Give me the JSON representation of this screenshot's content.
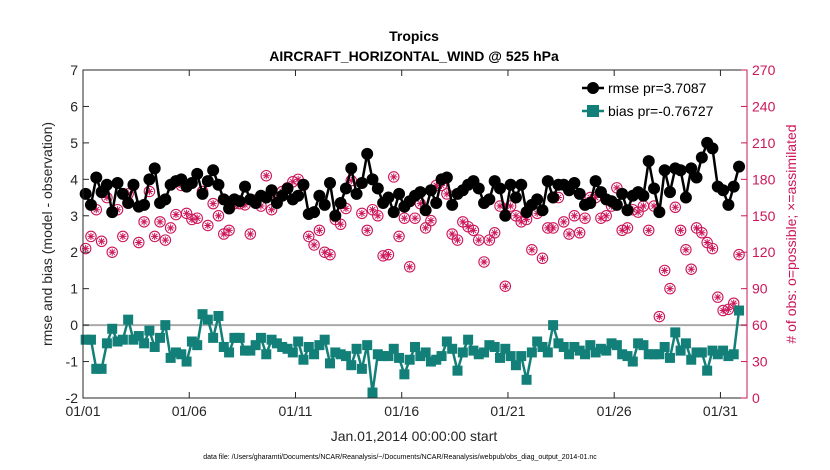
{
  "colors": {
    "rmse": "#000000",
    "bias": "#128078",
    "obs": "#cc1659",
    "zeroline": "#aaaaaa",
    "axis": "#333333"
  },
  "chart_data": {
    "type": "line",
    "title": "Tropics",
    "subtitle": "AIRCRAFT_HORIZONTAL_WIND @ 525 hPa",
    "xlabel": "Jan.01,2014 00:00:00 start",
    "ylabel": "rmse and bias (model - observation)",
    "y2label": "# of obs: o=possible; ×=assimilated",
    "footnote": "data file: /Users/gharamti/Documents/NCAR/Reanalysis/~/Documents/NCAR/Reanalysis/webpub/obs_diag_output_2014-01.nc",
    "xlim": [
      1,
      32.25
    ],
    "ylim": [
      -2,
      7
    ],
    "y2lim": [
      0,
      270
    ],
    "xticks": [
      1,
      6,
      11,
      16,
      21,
      26,
      31
    ],
    "xticklabels": [
      "01/01",
      "01/06",
      "01/11",
      "01/16",
      "01/21",
      "01/26",
      "01/31"
    ],
    "yticks": [
      -2,
      -1,
      0,
      1,
      2,
      3,
      4,
      5,
      6,
      7
    ],
    "yticklabels": [
      "-2",
      "-1",
      "0",
      "1",
      "2",
      "3",
      "4",
      "5",
      "6",
      "7"
    ],
    "y2ticks": [
      0,
      30,
      60,
      90,
      120,
      150,
      180,
      210,
      240,
      270
    ],
    "y2ticklabels": [
      "0",
      "30",
      "60",
      "90",
      "120",
      "150",
      "180",
      "210",
      "240",
      "270"
    ],
    "zero_line": 0,
    "grid": false,
    "legend_position": "top-right",
    "series": [
      {
        "name": "rmse pr=3.7087",
        "axis": "left",
        "marker": "circle",
        "x": [
          1.125,
          1.375,
          1.625,
          1.875,
          2.125,
          2.375,
          2.625,
          2.875,
          3.125,
          3.375,
          3.625,
          3.875,
          4.125,
          4.375,
          4.625,
          4.875,
          5.125,
          5.375,
          5.625,
          5.875,
          6.125,
          6.375,
          6.625,
          6.875,
          7.125,
          7.375,
          7.625,
          7.875,
          8.125,
          8.375,
          8.625,
          8.875,
          9.125,
          9.375,
          9.625,
          9.875,
          10.125,
          10.375,
          10.625,
          10.875,
          11.125,
          11.375,
          11.625,
          11.875,
          12.125,
          12.375,
          12.625,
          12.875,
          13.125,
          13.375,
          13.625,
          13.875,
          14.125,
          14.375,
          14.625,
          14.875,
          15.125,
          15.375,
          15.625,
          15.875,
          16.125,
          16.375,
          16.625,
          16.875,
          17.125,
          17.375,
          17.625,
          17.875,
          18.125,
          18.375,
          18.625,
          18.875,
          19.125,
          19.375,
          19.625,
          19.875,
          20.125,
          20.375,
          20.625,
          20.875,
          21.125,
          21.375,
          21.625,
          21.875,
          22.125,
          22.375,
          22.625,
          22.875,
          23.125,
          23.375,
          23.625,
          23.875,
          24.125,
          24.375,
          24.625,
          24.875,
          25.125,
          25.375,
          25.625,
          25.875,
          26.125,
          26.375,
          26.625,
          26.875,
          27.125,
          27.375,
          27.625,
          27.875,
          28.125,
          28.375,
          28.625,
          28.875,
          29.125,
          29.375,
          29.625,
          29.875,
          30.125,
          30.375,
          30.625,
          30.875,
          31.125,
          31.375,
          31.625,
          31.875
        ],
        "values": [
          3.6,
          3.3,
          4.05,
          3.65,
          3.85,
          3.1,
          3.9,
          3.6,
          3.35,
          3.85,
          3.25,
          3.3,
          4.0,
          4.3,
          3.35,
          3.45,
          3.85,
          3.95,
          4.0,
          3.8,
          3.9,
          4.15,
          3.6,
          3.95,
          4.25,
          3.85,
          3.45,
          3.2,
          3.45,
          3.4,
          3.8,
          3.45,
          3.35,
          3.55,
          3.5,
          3.7,
          3.35,
          3.55,
          3.75,
          3.45,
          3.55,
          3.85,
          3.05,
          3.1,
          3.55,
          3.3,
          3.9,
          3.0,
          3.35,
          3.75,
          4.3,
          3.6,
          3.9,
          4.7,
          4.0,
          3.75,
          3.35,
          3.5,
          3.1,
          3.6,
          3.25,
          3.4,
          3.55,
          3.65,
          3.15,
          3.7,
          3.35,
          4.0,
          4.05,
          3.3,
          3.6,
          3.7,
          3.85,
          3.95,
          3.75,
          3.35,
          3.45,
          3.95,
          3.75,
          3.0,
          3.85,
          3.5,
          3.85,
          3.1,
          3.3,
          3.45,
          3.15,
          3.95,
          3.5,
          3.85,
          3.85,
          3.7,
          3.9,
          3.6,
          3.3,
          3.35,
          3.95,
          3.65,
          3.45,
          3.4,
          3.3,
          3.6,
          3.15,
          3.55,
          3.65,
          3.55,
          4.5,
          3.75,
          3.1,
          4.25,
          3.65,
          4.3,
          4.25,
          3.5,
          4.3,
          4.05,
          4.6,
          5.0,
          4.85,
          3.8,
          3.7,
          3.3,
          3.8,
          4.35
        ]
      },
      {
        "name": "bias pr=-0.76727",
        "axis": "left",
        "marker": "square",
        "x": [
          1.125,
          1.375,
          1.625,
          1.875,
          2.125,
          2.375,
          2.625,
          2.875,
          3.125,
          3.375,
          3.625,
          3.875,
          4.125,
          4.375,
          4.625,
          4.875,
          5.125,
          5.375,
          5.625,
          5.875,
          6.125,
          6.375,
          6.625,
          6.875,
          7.125,
          7.375,
          7.625,
          7.875,
          8.125,
          8.375,
          8.625,
          8.875,
          9.125,
          9.375,
          9.625,
          9.875,
          10.125,
          10.375,
          10.625,
          10.875,
          11.125,
          11.375,
          11.625,
          11.875,
          12.125,
          12.375,
          12.625,
          12.875,
          13.125,
          13.375,
          13.625,
          13.875,
          14.125,
          14.375,
          14.625,
          14.875,
          15.125,
          15.375,
          15.625,
          15.875,
          16.125,
          16.375,
          16.625,
          16.875,
          17.125,
          17.375,
          17.625,
          17.875,
          18.125,
          18.375,
          18.625,
          18.875,
          19.125,
          19.375,
          19.625,
          19.875,
          20.125,
          20.375,
          20.625,
          20.875,
          21.125,
          21.375,
          21.625,
          21.875,
          22.125,
          22.375,
          22.625,
          22.875,
          23.125,
          23.375,
          23.625,
          23.875,
          24.125,
          24.375,
          24.625,
          24.875,
          25.125,
          25.375,
          25.625,
          25.875,
          26.125,
          26.375,
          26.625,
          26.875,
          27.125,
          27.375,
          27.625,
          27.875,
          28.125,
          28.375,
          28.625,
          28.875,
          29.125,
          29.375,
          29.625,
          29.875,
          30.125,
          30.375,
          30.625,
          30.875,
          31.125,
          31.375,
          31.625,
          31.875
        ],
        "values": [
          -0.4,
          -0.4,
          -1.2,
          -1.2,
          -0.5,
          -0.1,
          -0.45,
          -0.4,
          0.15,
          -0.4,
          -0.3,
          -0.5,
          -0.15,
          -0.6,
          -0.35,
          0.0,
          -0.9,
          -0.75,
          -0.8,
          -1.0,
          -0.45,
          -0.55,
          0.3,
          0.15,
          -0.35,
          0.25,
          -0.6,
          -0.75,
          -0.35,
          -0.35,
          -0.7,
          -0.7,
          -0.55,
          -0.35,
          -0.8,
          -0.4,
          -0.5,
          -0.6,
          -0.65,
          -0.75,
          -0.45,
          -0.95,
          -0.6,
          -0.8,
          -0.55,
          -0.4,
          -1.05,
          -0.75,
          -0.8,
          -0.85,
          -1.1,
          -0.65,
          -1.2,
          -0.55,
          -1.85,
          -0.8,
          -0.85,
          -0.85,
          -0.65,
          -0.9,
          -1.35,
          -0.95,
          -0.6,
          -0.85,
          -0.75,
          -1.0,
          -0.95,
          -0.85,
          -0.45,
          -0.65,
          -1.25,
          -0.75,
          -0.4,
          -0.7,
          -0.8,
          -0.75,
          -0.55,
          -0.6,
          -0.9,
          -0.65,
          -0.85,
          -1.1,
          -0.85,
          -1.5,
          -0.75,
          -0.45,
          -0.6,
          -0.75,
          0.0,
          -0.5,
          -0.6,
          -0.8,
          -0.6,
          -0.7,
          -0.8,
          -0.55,
          -0.75,
          -0.65,
          -0.7,
          -0.5,
          -0.55,
          -0.8,
          -0.85,
          -1.0,
          -0.5,
          -0.55,
          -0.8,
          -0.8,
          -0.8,
          -0.6,
          -0.9,
          -0.2,
          -0.7,
          -0.5,
          -0.95,
          -0.75,
          -0.75,
          -1.25,
          -0.7,
          -0.8,
          -0.7,
          -0.85,
          -0.8,
          0.4
        ]
      },
      {
        "name": "possible",
        "axis": "right",
        "marker": "circle-star",
        "x": [
          1.125,
          1.375,
          1.625,
          1.875,
          2.125,
          2.375,
          2.625,
          2.875,
          3.125,
          3.375,
          3.625,
          3.875,
          4.125,
          4.375,
          4.625,
          4.875,
          5.125,
          5.375,
          5.625,
          5.875,
          6.125,
          6.375,
          6.625,
          6.875,
          7.125,
          7.375,
          7.625,
          7.875,
          8.125,
          8.375,
          8.625,
          8.875,
          9.125,
          9.375,
          9.625,
          9.875,
          10.125,
          10.375,
          10.625,
          10.875,
          11.125,
          11.375,
          11.625,
          11.875,
          12.125,
          12.375,
          12.625,
          12.875,
          13.125,
          13.375,
          13.625,
          13.875,
          14.125,
          14.375,
          14.625,
          14.875,
          15.125,
          15.375,
          15.625,
          15.875,
          16.125,
          16.375,
          16.625,
          16.875,
          17.125,
          17.375,
          17.625,
          17.875,
          18.125,
          18.375,
          18.625,
          18.875,
          19.125,
          19.375,
          19.625,
          19.875,
          20.125,
          20.375,
          20.625,
          20.875,
          21.125,
          21.375,
          21.625,
          21.875,
          22.125,
          22.375,
          22.625,
          22.875,
          23.125,
          23.375,
          23.625,
          23.875,
          24.125,
          24.375,
          24.625,
          24.875,
          25.125,
          25.375,
          25.625,
          25.875,
          26.125,
          26.375,
          26.625,
          26.875,
          27.125,
          27.375,
          27.625,
          27.875,
          28.125,
          28.375,
          28.625,
          28.875,
          29.125,
          29.375,
          29.625,
          29.875,
          30.125,
          30.375,
          30.625,
          30.875,
          31.125,
          31.375,
          31.625,
          31.875
        ],
        "values": [
          123,
          133,
          155,
          129,
          165,
          120,
          155,
          133,
          168,
          175,
          128,
          145,
          170,
          133,
          145,
          130,
          140,
          151,
          175,
          152,
          147,
          148,
          170,
          142,
          160,
          150,
          135,
          138,
          160,
          160,
          159,
          135,
          163,
          158,
          183,
          155,
          163,
          170,
          173,
          178,
          180,
          175,
          133,
          126,
          138,
          120,
          118,
          147,
          143,
          156,
          179,
          168,
          152,
          138,
          155,
          150,
          117,
          118,
          182,
          133,
          148,
          108,
          148,
          160,
          140,
          146,
          175,
          175,
          168,
          135,
          130,
          145,
          141,
          138,
          130,
          112,
          130,
          136,
          158,
          92,
          158,
          150,
          145,
          147,
          122,
          152,
          115,
          140,
          140,
          165,
          145,
          135,
          150,
          136,
          148,
          165,
          165,
          148,
          150,
          158,
          173,
          138,
          140,
          155,
          153,
          158,
          138,
          158,
          67,
          105,
          90,
          157,
          138,
          122,
          106,
          140,
          136,
          128,
          123,
          83,
          72,
          73,
          78,
          118
        ]
      },
      {
        "name": "assimilated",
        "axis": "right",
        "marker": "x",
        "x": [
          1.125,
          1.375,
          1.625,
          1.875,
          2.125,
          2.375,
          2.625,
          2.875,
          3.125,
          3.375,
          3.625,
          3.875,
          4.125,
          4.375,
          4.625,
          4.875,
          5.125,
          5.375,
          5.625,
          5.875,
          6.125,
          6.375,
          6.625,
          6.875,
          7.125,
          7.375,
          7.625,
          7.875,
          8.125,
          8.375,
          8.625,
          8.875,
          9.125,
          9.375,
          9.625,
          9.875,
          10.125,
          10.375,
          10.625,
          10.875,
          11.125,
          11.375,
          11.625,
          11.875,
          12.125,
          12.375,
          12.625,
          12.875,
          13.125,
          13.375,
          13.625,
          13.875,
          14.125,
          14.375,
          14.625,
          14.875,
          15.125,
          15.375,
          15.625,
          15.875,
          16.125,
          16.375,
          16.625,
          16.875,
          17.125,
          17.375,
          17.625,
          17.875,
          18.125,
          18.375,
          18.625,
          18.875,
          19.125,
          19.375,
          19.625,
          19.875,
          20.125,
          20.375,
          20.625,
          20.875,
          21.125,
          21.375,
          21.625,
          21.875,
          22.125,
          22.375,
          22.625,
          22.875,
          23.125,
          23.375,
          23.625,
          23.875,
          24.125,
          24.375,
          24.625,
          24.875,
          25.125,
          25.375,
          25.625,
          25.875,
          26.125,
          26.375,
          26.625,
          26.875,
          27.125,
          27.375,
          27.625,
          27.875,
          28.125,
          28.375,
          28.625,
          28.875,
          29.125,
          29.375,
          29.625,
          29.875,
          30.125,
          30.375,
          30.625,
          30.875,
          31.125,
          31.375,
          31.625,
          31.875
        ],
        "values": [
          123,
          133,
          155,
          129,
          165,
          120,
          155,
          133,
          168,
          175,
          128,
          145,
          170,
          133,
          145,
          130,
          140,
          151,
          175,
          152,
          147,
          148,
          170,
          142,
          160,
          150,
          135,
          138,
          160,
          160,
          159,
          135,
          163,
          158,
          183,
          155,
          163,
          170,
          173,
          178,
          180,
          175,
          133,
          126,
          138,
          120,
          118,
          147,
          143,
          156,
          179,
          168,
          152,
          138,
          155,
          150,
          117,
          118,
          182,
          133,
          148,
          108,
          148,
          160,
          140,
          146,
          175,
          175,
          168,
          135,
          130,
          145,
          141,
          138,
          130,
          112,
          130,
          136,
          158,
          92,
          158,
          150,
          145,
          147,
          122,
          152,
          115,
          140,
          140,
          165,
          145,
          135,
          150,
          136,
          148,
          165,
          165,
          148,
          150,
          158,
          173,
          138,
          140,
          155,
          153,
          158,
          138,
          158,
          67,
          105,
          90,
          157,
          138,
          122,
          106,
          140,
          136,
          128,
          123,
          83,
          72,
          73,
          78,
          118
        ]
      }
    ]
  }
}
